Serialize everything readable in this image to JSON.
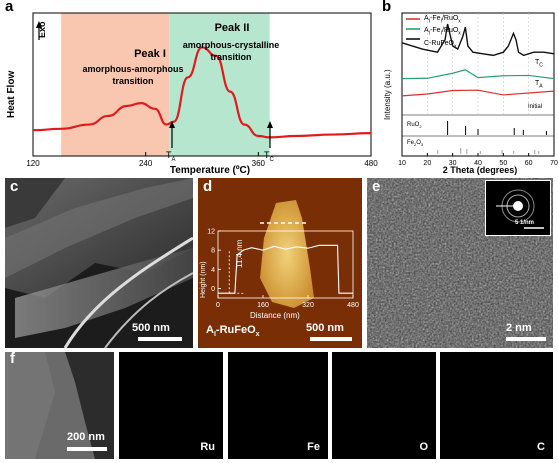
{
  "panel_a": {
    "label": "a",
    "exo_label": "Exo",
    "ylabel": "Heat Flow",
    "xlabel": "Temperature (ºC)",
    "peak1_title": "Peak I",
    "peak1_desc1": "amorphous-amorphous",
    "peak1_desc2": "transition",
    "peak2_title": "Peak II",
    "peak2_desc1": "amorphous-crystalline",
    "peak2_desc2": "transition",
    "ta_label": "T",
    "ta_sub": "A",
    "tc_label": "T",
    "tc_sub": "C",
    "colors": {
      "peak1_band": "#f9c7b0",
      "peak2_band": "#b7e6cf",
      "curve": "#e01b1b"
    }
  },
  "panel_b": {
    "label": "b",
    "ylabel": "Intensity (a.u.)",
    "xlabel": "2 Theta (degrees)",
    "legend": [
      {
        "text": "A",
        "sub1": "I",
        "mid": "-Fe",
        "sub2": "I",
        "end": "/RuO",
        "sub3": "x",
        "color": "#e03030"
      },
      {
        "text": "A",
        "sub1": "I",
        "mid": "-Fe",
        "sub2": "I",
        "end": "/RuO",
        "sub3": "x",
        "color": "#2aa070"
      },
      {
        "text": "C-RuFeO",
        "sub3": "x",
        "color": "#111111"
      }
    ],
    "trace_labels": {
      "tc": "T",
      "tc_sub": "C",
      "ta": "T",
      "ta_sub": "A",
      "initial": "Initial"
    },
    "ref_labels": {
      "ruo2": "RuO",
      "ruo2_sub": "2",
      "fe2o3": "Fe",
      "fe2o3_sub1": "2",
      "fe2o3_mid": "O",
      "fe2o3_sub2": "3"
    }
  },
  "panel_c": {
    "label": "c",
    "scale": "500 nm"
  },
  "panel_d": {
    "label": "d",
    "scale": "500 nm",
    "ylabel": "Height (nm)",
    "xlabel": "Distance (nm)",
    "annot": "11.4 nm",
    "caption": "A",
    "caption_sub": "I",
    "caption_rest": "-RuFeO",
    "caption_sub2": "x"
  },
  "panel_e": {
    "label": "e",
    "scale": "2 nm",
    "inset_scale": "5 1/nm"
  },
  "panel_f": {
    "label": "f",
    "scale": "200 nm",
    "maps": [
      {
        "element": "Ru",
        "color": "#33d6e6"
      },
      {
        "element": "Fe",
        "color": "#e02040"
      },
      {
        "element": "O",
        "color": "#e6e63a"
      },
      {
        "element": "C",
        "color": "#2ec04a"
      }
    ]
  },
  "chart_data": [
    {
      "type": "line",
      "panel": "a",
      "xlabel": "Temperature (ºC)",
      "ylabel": "Heat Flow",
      "xlim": [
        120,
        480
      ],
      "xticks": [
        120,
        240,
        360,
        480
      ],
      "bands": [
        {
          "name": "Peak I",
          "x": [
            150,
            265
          ]
        },
        {
          "name": "Peak II",
          "x": [
            265,
            372
          ]
        }
      ],
      "markers": [
        {
          "name": "TA",
          "x": 266
        },
        {
          "name": "TC",
          "x": 370
        }
      ],
      "x": [
        120,
        150,
        180,
        200,
        220,
        235,
        250,
        262,
        270,
        285,
        300,
        315,
        330,
        345,
        360,
        372,
        400,
        440,
        480
      ],
      "y": [
        0.18,
        0.19,
        0.22,
        0.28,
        0.35,
        0.37,
        0.33,
        0.22,
        0.24,
        0.55,
        0.76,
        0.7,
        0.45,
        0.22,
        0.14,
        0.13,
        0.14,
        0.15,
        0.16
      ]
    },
    {
      "type": "line",
      "panel": "b",
      "xlabel": "2 Theta (degrees)",
      "ylabel": "Intensity (a.u.)",
      "xlim": [
        10,
        70
      ],
      "xticks": [
        10,
        20,
        30,
        40,
        50,
        60,
        70
      ],
      "series": [
        {
          "name": "C-RuFeOx",
          "x": [
            10,
            18,
            24,
            27,
            28,
            30,
            32,
            34,
            35,
            36,
            38,
            42,
            46,
            50,
            52,
            54,
            55,
            56,
            58,
            62,
            66,
            70
          ],
          "y": [
            0.76,
            0.72,
            0.7,
            0.78,
            0.88,
            0.74,
            0.72,
            0.8,
            0.86,
            0.74,
            0.7,
            0.69,
            0.68,
            0.7,
            0.74,
            0.82,
            0.78,
            0.7,
            0.68,
            0.7,
            0.7,
            0.69
          ]
        },
        {
          "name": "AI-FeI/RuOx (TA)",
          "x": [
            10,
            20,
            30,
            35,
            40,
            50,
            60,
            70
          ],
          "y": [
            0.55,
            0.54,
            0.56,
            0.57,
            0.55,
            0.55,
            0.54,
            0.55
          ]
        },
        {
          "name": "AI-FeI/RuOx (Initial)",
          "x": [
            10,
            20,
            30,
            40,
            50,
            60,
            70
          ],
          "y": [
            0.44,
            0.44,
            0.45,
            0.44,
            0.44,
            0.44,
            0.44
          ]
        }
      ],
      "references": [
        {
          "name": "RuO2",
          "positions": [
            28.0,
            35.1,
            40.0,
            54.3,
            57.9,
            67.0
          ]
        },
        {
          "name": "Fe2O3",
          "positions": [
            24.1,
            33.2,
            35.6,
            40.9,
            49.5,
            54.1,
            62.4,
            64.0
          ]
        }
      ]
    },
    {
      "type": "line",
      "panel": "d-inset",
      "xlabel": "Distance (nm)",
      "ylabel": "Height (nm)",
      "xlim": [
        0,
        480
      ],
      "ylim": [
        -2,
        12
      ],
      "xticks": [
        0,
        160,
        320,
        480
      ],
      "yticks": [
        0,
        4,
        8,
        12
      ],
      "x": [
        0,
        60,
        68,
        90,
        120,
        160,
        200,
        240,
        280,
        320,
        360,
        400,
        425,
        430,
        480
      ],
      "y": [
        -1,
        -1,
        7,
        8,
        8.5,
        8,
        8.8,
        8.2,
        8.7,
        8.4,
        9,
        9,
        9,
        -1,
        -1
      ]
    }
  ]
}
